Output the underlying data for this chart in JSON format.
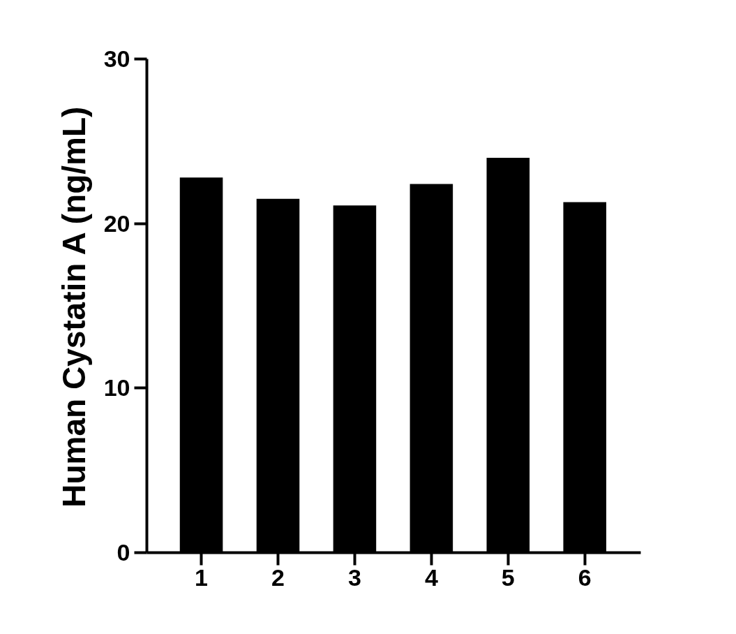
{
  "chart_data": {
    "type": "bar",
    "ylabel": "Human Cystatin A (ng/mL)",
    "categories": [
      "1",
      "2",
      "3",
      "4",
      "5",
      "6"
    ],
    "values": [
      22.8,
      21.5,
      21.1,
      22.4,
      24.0,
      21.3
    ],
    "color": "#000000",
    "ylim": [
      0,
      30
    ],
    "yticks": [
      0,
      10,
      20,
      30
    ],
    "grid": false
  }
}
